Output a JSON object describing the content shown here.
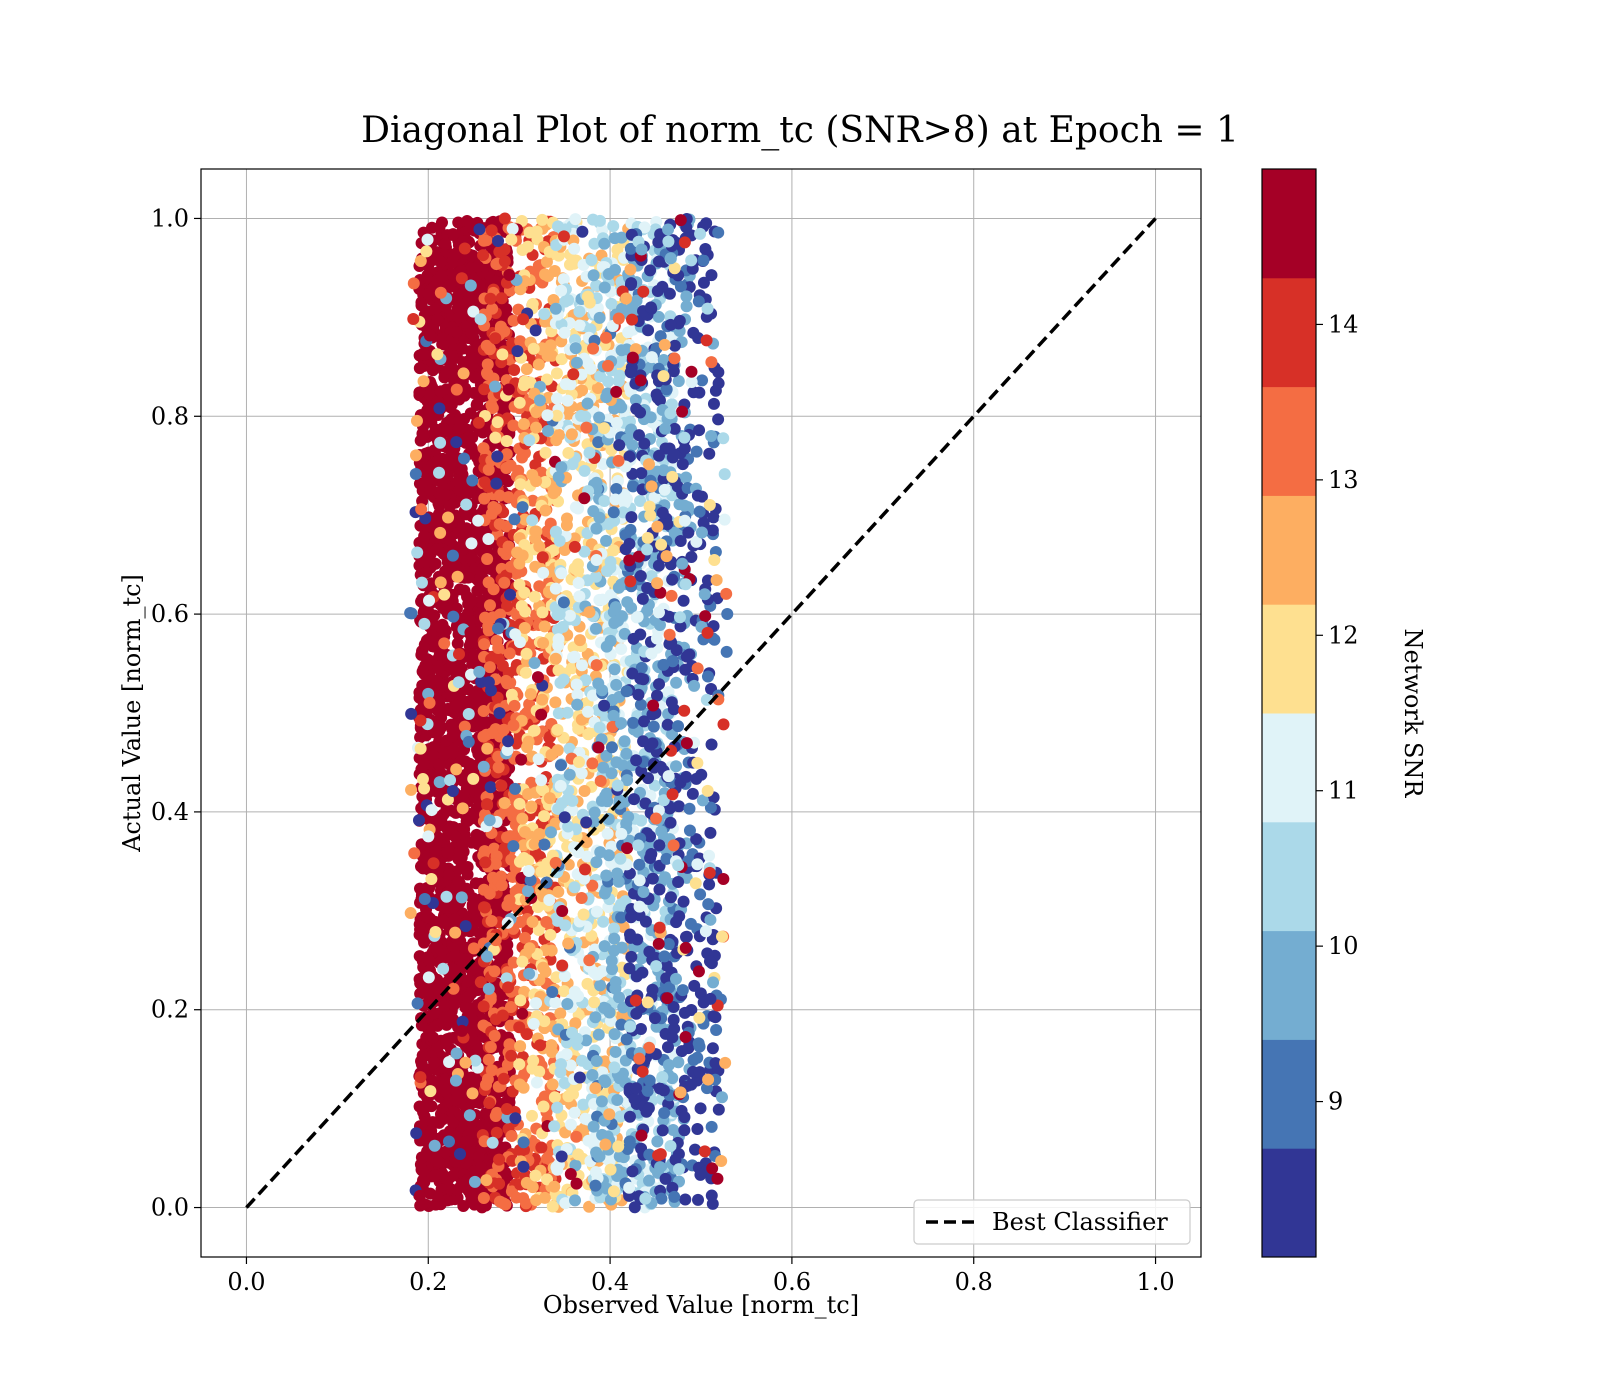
{
  "chart_data": {
    "type": "scatter",
    "title": "Diagonal Plot of norm_tc (SNR>8) at Epoch = 1",
    "xlabel": "Observed Value [norm_tc]",
    "ylabel": "Actual Value [norm_tc]",
    "xlim": [
      -0.05,
      1.05
    ],
    "ylim": [
      -0.05,
      1.05
    ],
    "xticks": [
      0.0,
      0.2,
      0.4,
      0.6,
      0.8,
      1.0
    ],
    "yticks": [
      0.0,
      0.2,
      0.4,
      0.6,
      0.8,
      1.0
    ],
    "xtick_labels": [
      "0.0",
      "0.2",
      "0.4",
      "0.6",
      "0.8",
      "1.0"
    ],
    "ytick_labels": [
      "0.0",
      "0.2",
      "0.4",
      "0.6",
      "0.8",
      "1.0"
    ],
    "grid": true,
    "legend": {
      "placement": "lower-right",
      "entries": [
        "Best Classifier"
      ]
    },
    "reference_line": {
      "name": "Best Classifier",
      "x": [
        0.0,
        1.0
      ],
      "y": [
        0.0,
        1.0
      ],
      "style": "dashed",
      "color": "#000000"
    },
    "colorbar": {
      "label": "Network SNR",
      "range": [
        8.0,
        15.0
      ],
      "ticks": [
        9,
        10,
        11,
        12,
        13,
        14
      ],
      "tick_labels": [
        "9",
        "10",
        "11",
        "12",
        "13",
        "14"
      ],
      "colors": [
        "#313695",
        "#4575b4",
        "#74add1",
        "#abd9e9",
        "#e0f3f8",
        "#fee090",
        "#fdae61",
        "#f46d43",
        "#d73027",
        "#a50026"
      ]
    },
    "scatter_summary": {
      "y_range": [
        0.0,
        1.0
      ],
      "x_range": [
        0.18,
        0.53
      ],
      "bands": [
        {
          "snr": 14.7,
          "x_range": [
            0.19,
            0.29
          ],
          "density": "dense"
        },
        {
          "snr": 13.5,
          "x_range": [
            0.26,
            0.34
          ],
          "density": "medium"
        },
        {
          "snr": 12.2,
          "x_range": [
            0.3,
            0.42
          ],
          "density": "medium"
        },
        {
          "snr": 10.8,
          "x_range": [
            0.34,
            0.47
          ],
          "density": "medium"
        },
        {
          "snr": 9.6,
          "x_range": [
            0.38,
            0.49
          ],
          "density": "sparse"
        },
        {
          "snr": 8.5,
          "x_range": [
            0.42,
            0.52
          ],
          "density": "sparse"
        }
      ]
    }
  }
}
